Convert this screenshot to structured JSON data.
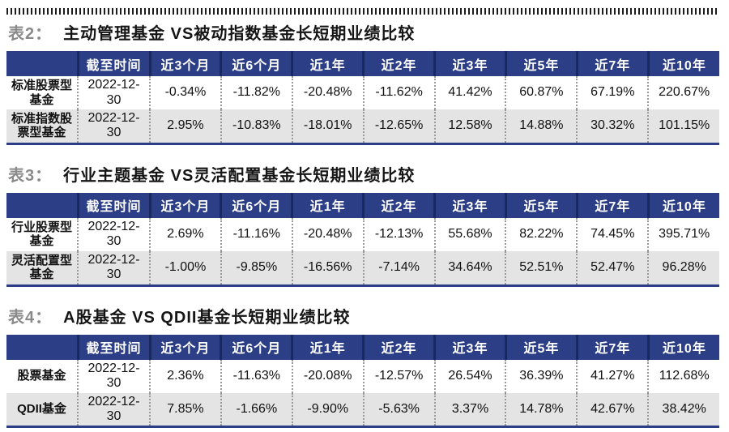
{
  "colors": {
    "header_bg": "#2b3e86",
    "header_divider": "#19295e",
    "stripe_bg": "#e4e4e4",
    "bottom_rule": "#2b3e86",
    "title_prefix_gray": "#8a8a8a",
    "dotted_separator": "#9a9a9a"
  },
  "tables": [
    {
      "prefix": "表2：",
      "title": "主动管理基金 VS被动指数基金长短期业绩比较",
      "columns": [
        "",
        "截至时间",
        "近3个月",
        "近6个月",
        "近1年",
        "近2年",
        "近3年",
        "近5年",
        "近7年",
        "近10年"
      ],
      "rows": [
        {
          "name": "标准股票型基金",
          "date": "2022-12-30",
          "values": [
            "-0.34%",
            "-11.82%",
            "-20.48%",
            "-11.62%",
            "41.42%",
            "60.87%",
            "67.19%",
            "220.67%"
          ]
        },
        {
          "name": "标准指数股票型基金",
          "date": "2022-12-30",
          "values": [
            "2.95%",
            "-10.83%",
            "-18.01%",
            "-12.65%",
            "12.58%",
            "14.88%",
            "30.32%",
            "101.15%"
          ]
        }
      ]
    },
    {
      "prefix": "表3：",
      "title": "行业主题基金 VS灵活配置基金长短期业绩比较",
      "columns": [
        "",
        "截至时间",
        "近3个月",
        "近6个月",
        "近1年",
        "近2年",
        "近3年",
        "近5年",
        "近7年",
        "近10年"
      ],
      "rows": [
        {
          "name": "行业股票型基金",
          "date": "2022-12-30",
          "values": [
            "2.69%",
            "-11.16%",
            "-20.48%",
            "-12.13%",
            "55.68%",
            "82.22%",
            "74.45%",
            "395.71%"
          ]
        },
        {
          "name": "灵活配置型基金",
          "date": "2022-12-30",
          "values": [
            "-1.00%",
            "-9.85%",
            "-16.56%",
            "-7.14%",
            "34.64%",
            "52.51%",
            "52.47%",
            "96.28%"
          ]
        }
      ]
    },
    {
      "prefix": "表4：",
      "title": "A股基金 VS QDII基金长短期业绩比较",
      "columns": [
        "",
        "截至时间",
        "近3个月",
        "近6个月",
        "近1年",
        "近2年",
        "近3年",
        "近5年",
        "近7年",
        "近10年"
      ],
      "rows": [
        {
          "name": "股票基金",
          "date": "2022-12-30",
          "values": [
            "2.36%",
            "-11.63%",
            "-20.08%",
            "-12.57%",
            "26.54%",
            "36.39%",
            "41.27%",
            "112.68%"
          ]
        },
        {
          "name": "QDII基金",
          "date": "2022-12-30",
          "values": [
            "7.85%",
            "-1.66%",
            "-9.90%",
            "-5.63%",
            "3.37%",
            "14.78%",
            "42.67%",
            "38.42%"
          ]
        }
      ]
    }
  ]
}
